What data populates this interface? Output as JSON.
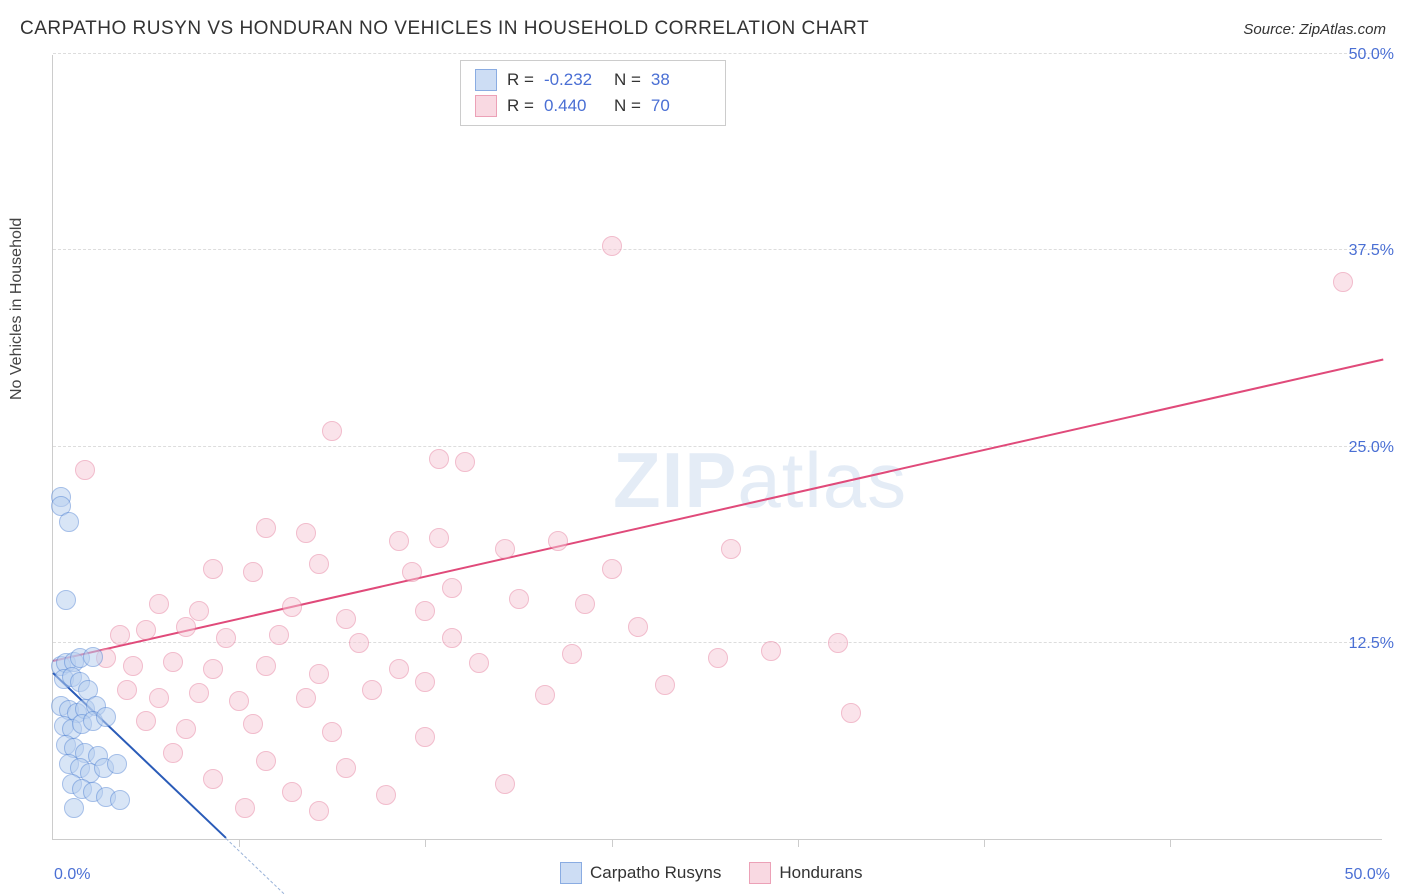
{
  "title": "CARPATHO RUSYN VS HONDURAN NO VEHICLES IN HOUSEHOLD CORRELATION CHART",
  "source_label": "Source: ",
  "source_value": "ZipAtlas.com",
  "ylabel": "No Vehicles in Household",
  "watermark_bold": "ZIP",
  "watermark_light": "atlas",
  "chart": {
    "type": "scatter",
    "xlim": [
      0,
      50
    ],
    "ylim": [
      0,
      50
    ],
    "xtick_labels": {
      "0": "0.0%",
      "50": "50.0%"
    },
    "ytick_labels": {
      "12.5": "12.5%",
      "25": "25.0%",
      "37.5": "37.5%",
      "50": "50.0%"
    },
    "gridline_y": [
      12.5,
      25,
      37.5,
      50
    ],
    "vtick_x": [
      7,
      14,
      21,
      28,
      35,
      42
    ],
    "background_color": "#ffffff",
    "grid_color": "#dddddd",
    "axis_color": "#cccccc",
    "marker_radius": 10,
    "marker_stroke_width": 1.5,
    "series": [
      {
        "name": "Carpatho Rusyns",
        "fill": "#b9d0f0",
        "stroke": "#5a8ad6",
        "fill_opacity": 0.55,
        "R": "-0.232",
        "N": "38",
        "trend": {
          "x1": 0,
          "y1": 10.5,
          "x2": 6.5,
          "y2": 0,
          "color": "#2a5bb8",
          "width": 2,
          "dash_ext_x2": 6.5,
          "dash_ext_y2": 0
        },
        "points": [
          [
            0.3,
            21.8
          ],
          [
            0.3,
            21.2
          ],
          [
            0.6,
            20.2
          ],
          [
            0.5,
            15.2
          ],
          [
            0.3,
            11.0
          ],
          [
            0.5,
            11.2
          ],
          [
            0.8,
            11.3
          ],
          [
            1.0,
            11.5
          ],
          [
            1.5,
            11.6
          ],
          [
            0.4,
            10.2
          ],
          [
            0.7,
            10.3
          ],
          [
            1.0,
            10.0
          ],
          [
            1.3,
            9.5
          ],
          [
            0.3,
            8.5
          ],
          [
            0.6,
            8.2
          ],
          [
            0.9,
            8.0
          ],
          [
            1.2,
            8.3
          ],
          [
            1.6,
            8.5
          ],
          [
            0.4,
            7.2
          ],
          [
            0.7,
            7.0
          ],
          [
            1.1,
            7.3
          ],
          [
            1.5,
            7.5
          ],
          [
            2.0,
            7.8
          ],
          [
            0.5,
            6.0
          ],
          [
            0.8,
            5.8
          ],
          [
            1.2,
            5.5
          ],
          [
            1.7,
            5.3
          ],
          [
            0.6,
            4.8
          ],
          [
            1.0,
            4.5
          ],
          [
            1.4,
            4.2
          ],
          [
            1.9,
            4.5
          ],
          [
            2.4,
            4.8
          ],
          [
            0.7,
            3.5
          ],
          [
            1.1,
            3.2
          ],
          [
            1.5,
            3.0
          ],
          [
            2.0,
            2.7
          ],
          [
            2.5,
            2.5
          ],
          [
            0.8,
            2.0
          ]
        ]
      },
      {
        "name": "Hondurans",
        "fill": "#f7c9d6",
        "stroke": "#e57a9a",
        "fill_opacity": 0.5,
        "R": "0.440",
        "N": "70",
        "trend": {
          "x1": 0,
          "y1": 11.3,
          "x2": 50,
          "y2": 30.5,
          "color": "#e04a7a",
          "width": 2.5
        },
        "points": [
          [
            1.2,
            23.5
          ],
          [
            21.0,
            37.8
          ],
          [
            48.5,
            35.5
          ],
          [
            10.5,
            26.0
          ],
          [
            14.5,
            24.2
          ],
          [
            15.5,
            24.0
          ],
          [
            8.0,
            19.8
          ],
          [
            9.5,
            19.5
          ],
          [
            13.0,
            19.0
          ],
          [
            14.5,
            19.2
          ],
          [
            17.0,
            18.5
          ],
          [
            19.0,
            19.0
          ],
          [
            6.0,
            17.2
          ],
          [
            7.5,
            17.0
          ],
          [
            10.0,
            17.5
          ],
          [
            13.5,
            17.0
          ],
          [
            15.0,
            16.0
          ],
          [
            21.0,
            17.2
          ],
          [
            25.5,
            18.5
          ],
          [
            4.0,
            15.0
          ],
          [
            5.5,
            14.5
          ],
          [
            9.0,
            14.8
          ],
          [
            11.0,
            14.0
          ],
          [
            14.0,
            14.5
          ],
          [
            17.5,
            15.3
          ],
          [
            20.0,
            15.0
          ],
          [
            2.5,
            13.0
          ],
          [
            3.5,
            13.3
          ],
          [
            5.0,
            13.5
          ],
          [
            6.5,
            12.8
          ],
          [
            8.5,
            13.0
          ],
          [
            11.5,
            12.5
          ],
          [
            15.0,
            12.8
          ],
          [
            22.0,
            13.5
          ],
          [
            27.0,
            12.0
          ],
          [
            29.5,
            12.5
          ],
          [
            2.0,
            11.5
          ],
          [
            3.0,
            11.0
          ],
          [
            4.5,
            11.3
          ],
          [
            6.0,
            10.8
          ],
          [
            8.0,
            11.0
          ],
          [
            10.0,
            10.5
          ],
          [
            13.0,
            10.8
          ],
          [
            16.0,
            11.2
          ],
          [
            25.0,
            11.5
          ],
          [
            2.8,
            9.5
          ],
          [
            4.0,
            9.0
          ],
          [
            5.5,
            9.3
          ],
          [
            7.0,
            8.8
          ],
          [
            9.5,
            9.0
          ],
          [
            12.0,
            9.5
          ],
          [
            18.5,
            9.2
          ],
          [
            3.5,
            7.5
          ],
          [
            5.0,
            7.0
          ],
          [
            7.5,
            7.3
          ],
          [
            10.5,
            6.8
          ],
          [
            14.0,
            6.5
          ],
          [
            30.0,
            8.0
          ],
          [
            4.5,
            5.5
          ],
          [
            8.0,
            5.0
          ],
          [
            11.0,
            4.5
          ],
          [
            17.0,
            3.5
          ],
          [
            6.0,
            3.8
          ],
          [
            9.0,
            3.0
          ],
          [
            12.5,
            2.8
          ],
          [
            7.2,
            2.0
          ],
          [
            10.0,
            1.8
          ],
          [
            14.0,
            10.0
          ],
          [
            19.5,
            11.8
          ],
          [
            23.0,
            9.8
          ]
        ]
      }
    ]
  },
  "legend_bottom": [
    {
      "label": "Carpatho Rusyns",
      "fill": "#b9d0f0",
      "stroke": "#5a8ad6"
    },
    {
      "label": "Hondurans",
      "fill": "#f7c9d6",
      "stroke": "#e57a9a"
    }
  ],
  "label_color": "#4a6fd4",
  "text_color": "#333333"
}
